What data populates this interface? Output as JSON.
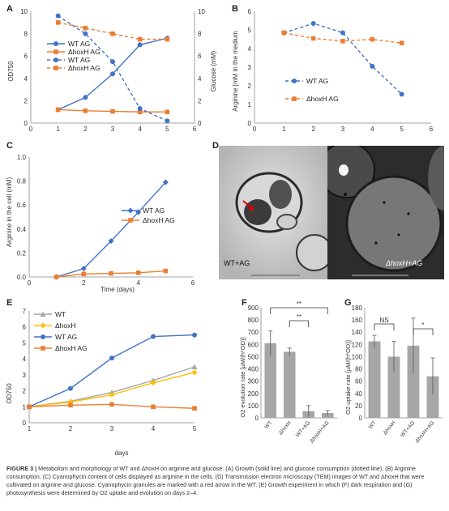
{
  "panels": {
    "A": {
      "label": "A",
      "y_left_label": "OD750",
      "y_right_label": "Glucose (mM)",
      "x_ticks": [
        "0",
        "1",
        "2",
        "3",
        "4",
        "5",
        "6"
      ],
      "y_left_ticks": [
        "0",
        "2",
        "4",
        "6",
        "8",
        "10"
      ],
      "y_right_ticks": [
        "0",
        "2",
        "4",
        "6",
        "8",
        "10"
      ],
      "legend": [
        "WT AG",
        "ΔhoxH AG",
        "WT AG",
        "ΔhoxH AG"
      ]
    },
    "B": {
      "label": "B",
      "y_label": "Arginine [mM in the medium",
      "x_ticks": [
        "0",
        "1",
        "2",
        "3",
        "4",
        "5",
        "6"
      ],
      "y_ticks": [
        "0",
        "1",
        "2",
        "3",
        "4",
        "5",
        "6"
      ],
      "legend": [
        "WT AG",
        "ΔhoxH AG"
      ]
    },
    "C": {
      "label": "C",
      "y_label": "Arginine in the cell (mM)",
      "x_label": "Time (days)",
      "x_ticks": [
        "0",
        "2",
        "4",
        "6"
      ],
      "y_ticks": [
        "0.0",
        "0.2",
        "0.4",
        "0.6",
        "0.8",
        "1.0"
      ],
      "legend": [
        "WT AG",
        "ΔhoxH AG"
      ]
    },
    "D": {
      "label": "D",
      "left_caption": "WT+AG",
      "right_caption": "ΔhoxH+AG"
    },
    "E": {
      "label": "E",
      "y_label": "OD750",
      "x_label": "days",
      "x_ticks": [
        "1",
        "2",
        "3",
        "4",
        "5"
      ],
      "y_ticks": [
        "0",
        "1",
        "2",
        "3",
        "4",
        "5",
        "6",
        "7"
      ],
      "legend": [
        "WT",
        "ΔhoxH",
        "WT AG",
        "ΔhoxH AG"
      ]
    },
    "F": {
      "label": "F",
      "y_label": "O2 evolution rate [µM/(h*OD)]",
      "y_ticks": [
        "0",
        "100",
        "200",
        "300",
        "400",
        "500",
        "600",
        "700",
        "800",
        "900"
      ],
      "categories": [
        "WT",
        "ΔhoxH",
        "WT+AG",
        "ΔhoxH+AG"
      ],
      "sig": [
        "**",
        "**"
      ]
    },
    "G": {
      "label": "G",
      "y_label": "O2 uptake rate [µM/(h*OD)]",
      "y_ticks": [
        "0",
        "20",
        "40",
        "60",
        "80",
        "100",
        "120",
        "140",
        "160",
        "180"
      ],
      "categories": [
        "WT",
        "ΔhoxH",
        "WT+AG",
        "ΔhoxH+AG"
      ],
      "sig": [
        "NS",
        "*"
      ]
    }
  },
  "colors": {
    "blue": "#4472c4",
    "orange": "#ed7d31",
    "grey": "#a5a5a5",
    "yellow": "#ffc000",
    "bar": "#a6a6a6"
  },
  "chart_data": [
    {
      "type": "line",
      "panel": "A",
      "xlim": [
        0,
        6
      ],
      "ylim": [
        0,
        10
      ],
      "y2lim": [
        0,
        10
      ],
      "x": [
        1,
        2,
        3,
        4,
        5
      ],
      "series": [
        {
          "name": "WT AG",
          "axis": "left",
          "style": "solid",
          "values": [
            1.2,
            2.3,
            4.4,
            7.0,
            7.6
          ]
        },
        {
          "name": "ΔhoxH AG",
          "axis": "left",
          "style": "solid",
          "values": [
            1.2,
            1.1,
            1.05,
            1.0,
            1.0
          ]
        },
        {
          "name": "WT AG",
          "axis": "right",
          "style": "dashed",
          "values": [
            9.6,
            8.0,
            5.5,
            1.3,
            0.2
          ]
        },
        {
          "name": "ΔhoxH AG",
          "axis": "right",
          "style": "dashed",
          "values": [
            9.0,
            8.5,
            8.0,
            7.5,
            7.5
          ]
        }
      ]
    },
    {
      "type": "line",
      "panel": "B",
      "xlim": [
        0,
        6
      ],
      "ylim": [
        0,
        6
      ],
      "x": [
        1,
        2,
        3,
        4,
        5
      ],
      "series": [
        {
          "name": "WT AG",
          "style": "dashed",
          "values": [
            4.85,
            5.35,
            4.85,
            3.05,
            1.55
          ]
        },
        {
          "name": "ΔhoxH AG",
          "style": "dashed",
          "values": [
            4.85,
            4.55,
            4.4,
            4.5,
            4.3
          ]
        }
      ]
    },
    {
      "type": "line",
      "panel": "C",
      "xlim": [
        0,
        6
      ],
      "ylim": [
        0,
        1.0
      ],
      "x": [
        1,
        2,
        3,
        4,
        5
      ],
      "series": [
        {
          "name": "WT AG",
          "values": [
            0.0,
            0.07,
            0.3,
            0.54,
            0.79
          ]
        },
        {
          "name": "ΔhoxH AG",
          "values": [
            0.0,
            0.025,
            0.03,
            0.035,
            0.05
          ]
        }
      ]
    },
    {
      "type": "line",
      "panel": "E",
      "xlim": [
        1,
        5
      ],
      "ylim": [
        0,
        7
      ],
      "x": [
        1,
        2,
        3,
        4,
        5
      ],
      "series": [
        {
          "name": "WT",
          "values": [
            1.0,
            1.35,
            1.9,
            2.65,
            3.5
          ]
        },
        {
          "name": "ΔhoxH",
          "values": [
            1.0,
            1.3,
            1.75,
            2.5,
            3.15
          ]
        },
        {
          "name": "WT AG",
          "values": [
            1.0,
            2.15,
            4.05,
            5.4,
            5.5
          ]
        },
        {
          "name": "ΔhoxH AG",
          "values": [
            1.0,
            1.1,
            1.15,
            1.0,
            0.9
          ]
        }
      ]
    },
    {
      "type": "bar",
      "panel": "F",
      "ylim": [
        0,
        900
      ],
      "categories": [
        "WT",
        "ΔhoxH",
        "WT+AG",
        "ΔhoxH+AG"
      ],
      "values": [
        610,
        540,
        55,
        40
      ],
      "errors": [
        100,
        30,
        45,
        20
      ]
    },
    {
      "type": "bar",
      "panel": "G",
      "ylim": [
        0,
        180
      ],
      "categories": [
        "WT",
        "ΔhoxH",
        "WT+AG",
        "ΔhoxH+AG"
      ],
      "values": [
        125,
        100,
        118,
        68
      ],
      "errors": [
        10,
        25,
        45,
        30
      ]
    }
  ],
  "caption": {
    "lead": "FIGURE 3 |",
    "text": "Metabolism and morphology of WT and ΔhoxH on arginine and glucose. (A) Growth (solid line) and glucose consumption (dotted line). (B) Arginine consumption. (C) Cyanophycin content of cells displayed as arginine in the cells. (D) Transmission electron microscopy (TEM) images of WT and ΔhoxH that were cultivated on arginine and glucose. Cyanophycin granules are marked with a red arrow in the WT. (E) Growth experiment in which (F) dark respiration and (G) photosynthesis were determined by O2 uptake and evolution on days 2–4."
  }
}
